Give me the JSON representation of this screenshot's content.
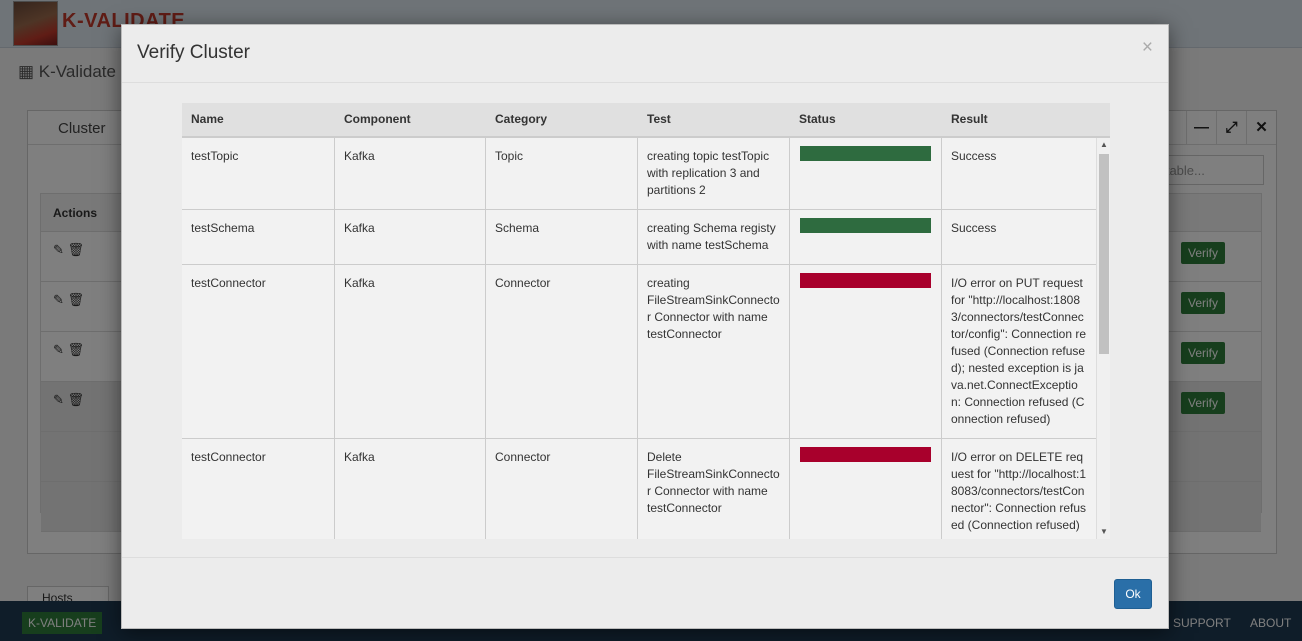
{
  "background": {
    "brand": "K-VALIDATE",
    "breadcrumb": "K-Validate >",
    "panel_title": "Cluster",
    "search_placeholder": "e table...",
    "actions_header": "Actions",
    "verify_label": "Verify",
    "hosts_tab": "Hosts",
    "bottom_brand": "K-VALIDATE",
    "support_label": "SUPPORT",
    "about_label": "ABOUT"
  },
  "modal": {
    "title": "Verify Cluster",
    "close_glyph": "×",
    "ok_label": "Ok",
    "columns": [
      "Name",
      "Component",
      "Category",
      "Test",
      "Status",
      "Result"
    ],
    "rows": [
      {
        "name": "testTopic",
        "component": "Kafka",
        "category": "Topic",
        "test": "creating topic testTopic with replication 3 and partitions 2",
        "status": "success",
        "result": "Success"
      },
      {
        "name": "testSchema",
        "component": "Kafka",
        "category": "Schema",
        "test": "creating Schema registy with name testSchema",
        "status": "success",
        "result": "Success"
      },
      {
        "name": "testConnector",
        "component": "Kafka",
        "category": "Connector",
        "test": "creating FileStreamSinkConnector Connector with name testConnector",
        "status": "failure",
        "result": "I/O error on PUT request for \"http://localhost:18083/connectors/testConnector/config\": Connection refused (Connection refused); nested exception is java.net.ConnectException: Connection refused (Connection refused)"
      },
      {
        "name": "testConnector",
        "component": "Kafka",
        "category": "Connector",
        "test": "Delete FileStreamSinkConnector Connector with name testConnector",
        "status": "failure",
        "result": "I/O error on DELETE request for \"http://localhost:18083/connectors/testConnector\": Connection refused (Connection refused)"
      }
    ],
    "status_colors": {
      "success": "#2e6b3f",
      "failure": "#a8002c"
    }
  }
}
